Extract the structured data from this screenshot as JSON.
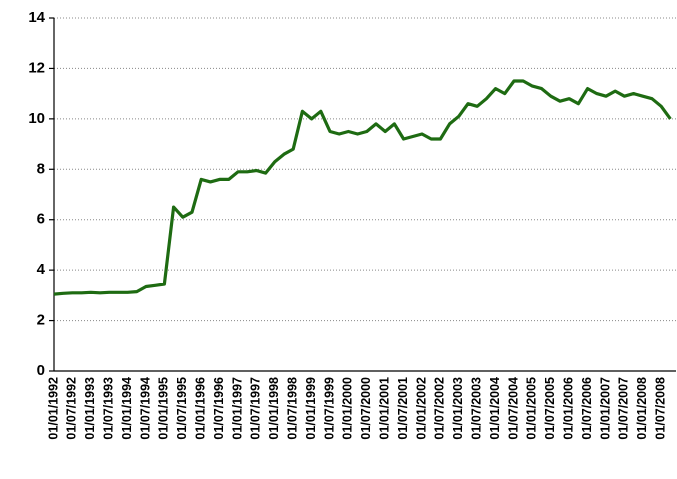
{
  "chart_data": {
    "type": "line",
    "categories": [
      "01/01/1992",
      null,
      "01/07/1992",
      null,
      "01/01/1993",
      null,
      "01/07/1993",
      null,
      "01/01/1994",
      null,
      "01/07/1994",
      null,
      "01/01/1995",
      null,
      "01/07/1995",
      null,
      "01/01/1996",
      null,
      "01/07/1996",
      null,
      "01/01/1997",
      null,
      "01/07/1997",
      null,
      "01/01/1998",
      null,
      "01/07/1998",
      null,
      "01/01/1999",
      null,
      "01/07/1999",
      null,
      "01/01/2000",
      null,
      "01/07/2000",
      null,
      "01/01/2001",
      null,
      "01/07/2001",
      null,
      "01/01/2002",
      null,
      "01/07/2002",
      null,
      "01/01/2003",
      null,
      "01/07/2003",
      null,
      "01/01/2004",
      null,
      "01/07/2004",
      null,
      "01/01/2005",
      null,
      "01/07/2005",
      null,
      "01/01/2006",
      null,
      "01/07/2006",
      null,
      "01/01/2007",
      null,
      "01/07/2007",
      null,
      "01/01/2008",
      null,
      "01/07/2008",
      null
    ],
    "series": [
      {
        "color": "#1e6b12",
        "values": [
          3.05,
          3.08,
          3.1,
          3.1,
          3.12,
          3.1,
          3.12,
          3.12,
          3.12,
          3.15,
          3.35,
          3.4,
          3.45,
          6.5,
          6.1,
          6.3,
          7.6,
          7.5,
          7.6,
          7.6,
          7.9,
          7.9,
          7.95,
          7.85,
          8.3,
          8.6,
          8.8,
          10.3,
          10.0,
          10.3,
          9.5,
          9.4,
          9.5,
          9.4,
          9.5,
          9.8,
          9.5,
          9.8,
          9.2,
          9.3,
          9.4,
          9.2,
          9.2,
          9.8,
          10.1,
          10.6,
          10.5,
          10.8,
          11.2,
          11.0,
          11.5,
          11.5,
          11.3,
          11.2,
          10.9,
          10.7,
          10.8,
          10.6,
          11.2,
          11.0,
          10.9,
          11.1,
          10.9,
          11.0,
          10.9,
          10.8,
          10.5,
          10.0
        ]
      }
    ],
    "ylim": [
      0,
      14
    ],
    "yticks": [
      0,
      2,
      4,
      6,
      8,
      10,
      12,
      14
    ],
    "grid": true
  }
}
